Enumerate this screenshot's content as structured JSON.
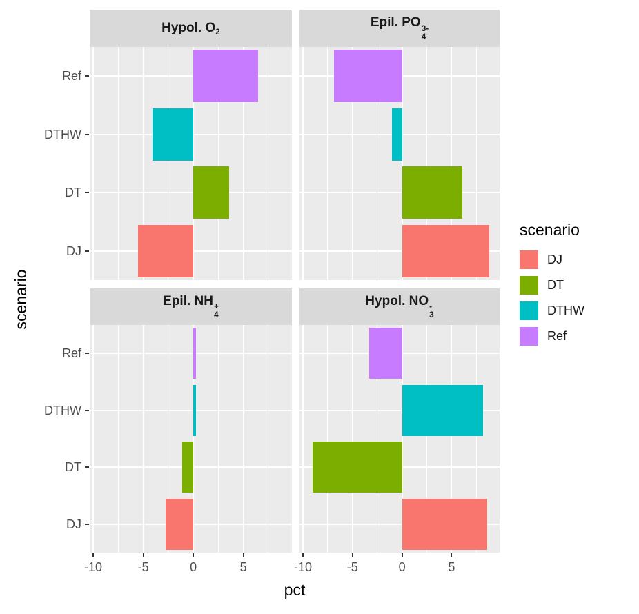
{
  "figure": {
    "x_axis_title": "pct",
    "y_axis_title": "scenario",
    "background": "#FFFFFF",
    "panel_background": "#EBEBEB",
    "strip_background": "#D9D9D9",
    "grid_color": "#FFFFFF",
    "tick_label_color": "#4D4D4D"
  },
  "legend": {
    "title": "scenario",
    "items": [
      {
        "label": "DJ",
        "color": "#F8766D"
      },
      {
        "label": "DT",
        "color": "#7CAE00"
      },
      {
        "label": "DTHW",
        "color": "#00BFC4"
      },
      {
        "label": "Ref",
        "color": "#C77CFF"
      }
    ]
  },
  "chart_data": {
    "type": "bar",
    "orientation": "horizontal",
    "title": "",
    "xlabel": "pct",
    "ylabel": "scenario",
    "categories": [
      "Ref",
      "DTHW",
      "DT",
      "DJ"
    ],
    "category_colors": {
      "Ref": "#C77CFF",
      "DTHW": "#00BFC4",
      "DT": "#7CAE00",
      "DJ": "#F8766D"
    },
    "x_ticks": [
      -10,
      -5,
      0,
      5
    ],
    "x_minor_ticks": [
      -7.5,
      -2.5,
      2.5,
      7.5
    ],
    "xlim": [
      -10.35,
      9.85
    ],
    "grid": true,
    "legend_position": "right",
    "facets": [
      {
        "title": {
          "prefix": "Hypol. O",
          "sub": "2",
          "sup": ""
        },
        "title_text": "Hypol. O2",
        "values": [
          6.5,
          -4.1,
          3.6,
          -5.5
        ]
      },
      {
        "title": {
          "prefix": "Epil. PO",
          "sub": "4",
          "sup": "3-"
        },
        "title_text": "Epil. PO4 3-",
        "values": [
          -6.9,
          -1.0,
          6.1,
          8.8
        ]
      },
      {
        "title": {
          "prefix": "Epil. NH",
          "sub": "4",
          "sup": "+"
        },
        "title_text": "Epil. NH4 +",
        "values": [
          0.25,
          0.25,
          -1.1,
          -2.8
        ]
      },
      {
        "title": {
          "prefix": "Hypol. NO",
          "sub": "3",
          "sup": "-"
        },
        "title_text": "Hypol. NO3 -",
        "values": [
          -3.3,
          8.2,
          -9.0,
          8.6
        ]
      }
    ]
  }
}
